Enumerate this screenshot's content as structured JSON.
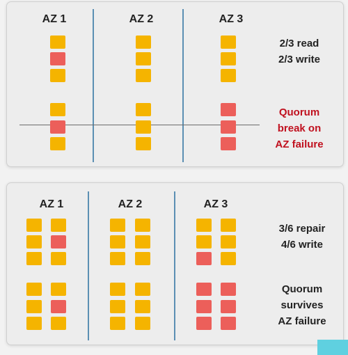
{
  "colors": {
    "ok": "#f5b400",
    "bad": "#ec5f5a",
    "accent_text": "#c0111f",
    "text": "#222222"
  },
  "top": {
    "az_labels": [
      "AZ 1",
      "AZ 2",
      "AZ 3"
    ],
    "note1": [
      "2/3 read",
      "2/3 write"
    ],
    "note2": [
      "Quorum",
      "break on",
      "AZ failure"
    ],
    "grid": [
      [
        "ok",
        "ok",
        "ok"
      ],
      [
        "bad",
        "ok",
        "ok"
      ],
      [
        "ok",
        "ok",
        "ok"
      ],
      [
        "ok",
        "ok",
        "bad"
      ],
      [
        "bad",
        "ok",
        "bad"
      ],
      [
        "ok",
        "ok",
        "bad"
      ]
    ]
  },
  "bottom": {
    "az_labels": [
      "AZ 1",
      "AZ 2",
      "AZ 3"
    ],
    "note1": [
      "3/6 repair",
      "4/6 write"
    ],
    "note2": [
      "Quorum",
      "survives",
      "AZ failure"
    ],
    "grid": [
      [
        "ok",
        "ok",
        "ok",
        "ok",
        "ok",
        "ok"
      ],
      [
        "ok",
        "bad",
        "ok",
        "ok",
        "ok",
        "ok"
      ],
      [
        "ok",
        "ok",
        "ok",
        "ok",
        "bad",
        "ok"
      ],
      [
        "ok",
        "ok",
        "ok",
        "ok",
        "bad",
        "bad"
      ],
      [
        "ok",
        "bad",
        "ok",
        "ok",
        "bad",
        "bad"
      ],
      [
        "ok",
        "ok",
        "ok",
        "ok",
        "bad",
        "bad"
      ]
    ]
  }
}
